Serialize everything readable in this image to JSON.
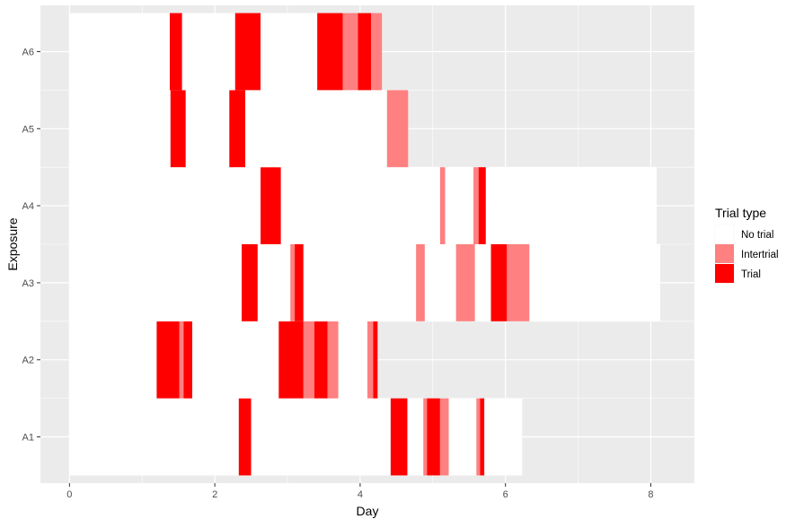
{
  "chart_data": {
    "type": "bar",
    "orientation": "horizontal",
    "xlabel": "Day",
    "ylabel": "Exposure",
    "xlim": [
      -0.4,
      8.6
    ],
    "x_ticks": [
      0,
      2,
      4,
      6,
      8
    ],
    "categories": [
      "A1",
      "A2",
      "A3",
      "A4",
      "A5",
      "A6"
    ],
    "grid": true,
    "legend": {
      "title": "Trial type",
      "position": "right",
      "entries": [
        {
          "name": "No trial",
          "color": "#ffffff"
        },
        {
          "name": "Intertrial",
          "color": "#ff8080"
        },
        {
          "name": "Trial",
          "color": "#ff0000"
        }
      ]
    },
    "series": [
      {
        "exposure": "A1",
        "segments": [
          {
            "start": 0,
            "end": 2.33,
            "type": "No trial"
          },
          {
            "start": 2.33,
            "end": 2.5,
            "type": "Trial"
          },
          {
            "start": 2.5,
            "end": 4.42,
            "type": "No trial"
          },
          {
            "start": 4.42,
            "end": 4.65,
            "type": "Trial"
          },
          {
            "start": 4.65,
            "end": 4.87,
            "type": "No trial"
          },
          {
            "start": 4.87,
            "end": 4.92,
            "type": "Intertrial"
          },
          {
            "start": 4.92,
            "end": 5.1,
            "type": "Trial"
          },
          {
            "start": 5.1,
            "end": 5.22,
            "type": "Intertrial"
          },
          {
            "start": 5.22,
            "end": 5.6,
            "type": "No trial"
          },
          {
            "start": 5.6,
            "end": 5.65,
            "type": "Intertrial"
          },
          {
            "start": 5.65,
            "end": 5.71,
            "type": "Trial"
          },
          {
            "start": 5.71,
            "end": 6.23,
            "type": "No trial"
          }
        ]
      },
      {
        "exposure": "A2",
        "segments": [
          {
            "start": 0,
            "end": 1.2,
            "type": "No trial"
          },
          {
            "start": 1.2,
            "end": 1.51,
            "type": "Trial"
          },
          {
            "start": 1.51,
            "end": 1.57,
            "type": "Intertrial"
          },
          {
            "start": 1.57,
            "end": 1.69,
            "type": "Trial"
          },
          {
            "start": 1.69,
            "end": 2.88,
            "type": "No trial"
          },
          {
            "start": 2.88,
            "end": 3.22,
            "type": "Trial"
          },
          {
            "start": 3.22,
            "end": 3.37,
            "type": "Intertrial"
          },
          {
            "start": 3.37,
            "end": 3.55,
            "type": "Trial"
          },
          {
            "start": 3.55,
            "end": 3.7,
            "type": "Intertrial"
          },
          {
            "start": 3.7,
            "end": 4.1,
            "type": "No trial"
          },
          {
            "start": 4.1,
            "end": 4.18,
            "type": "Intertrial"
          },
          {
            "start": 4.18,
            "end": 4.24,
            "type": "Trial"
          }
        ]
      },
      {
        "exposure": "A3",
        "segments": [
          {
            "start": 0,
            "end": 2.37,
            "type": "No trial"
          },
          {
            "start": 2.37,
            "end": 2.59,
            "type": "Trial"
          },
          {
            "start": 2.59,
            "end": 3.04,
            "type": "No trial"
          },
          {
            "start": 3.04,
            "end": 3.1,
            "type": "Intertrial"
          },
          {
            "start": 3.1,
            "end": 3.22,
            "type": "Trial"
          },
          {
            "start": 3.22,
            "end": 4.77,
            "type": "No trial"
          },
          {
            "start": 4.77,
            "end": 4.89,
            "type": "Intertrial"
          },
          {
            "start": 4.89,
            "end": 5.32,
            "type": "No trial"
          },
          {
            "start": 5.32,
            "end": 5.58,
            "type": "Intertrial"
          },
          {
            "start": 5.58,
            "end": 5.8,
            "type": "No trial"
          },
          {
            "start": 5.8,
            "end": 6.02,
            "type": "Trial"
          },
          {
            "start": 6.02,
            "end": 6.33,
            "type": "Intertrial"
          },
          {
            "start": 6.33,
            "end": 8.13,
            "type": "No trial"
          }
        ]
      },
      {
        "exposure": "A4",
        "segments": [
          {
            "start": 0,
            "end": 2.63,
            "type": "No trial"
          },
          {
            "start": 2.63,
            "end": 2.91,
            "type": "Trial"
          },
          {
            "start": 2.91,
            "end": 5.1,
            "type": "No trial"
          },
          {
            "start": 5.1,
            "end": 5.17,
            "type": "Intertrial"
          },
          {
            "start": 5.17,
            "end": 5.56,
            "type": "No trial"
          },
          {
            "start": 5.56,
            "end": 5.63,
            "type": "Intertrial"
          },
          {
            "start": 5.63,
            "end": 5.73,
            "type": "Trial"
          },
          {
            "start": 5.73,
            "end": 8.08,
            "type": "No trial"
          }
        ]
      },
      {
        "exposure": "A5",
        "segments": [
          {
            "start": 0,
            "end": 1.39,
            "type": "No trial"
          },
          {
            "start": 1.39,
            "end": 1.6,
            "type": "Trial"
          },
          {
            "start": 1.6,
            "end": 2.2,
            "type": "No trial"
          },
          {
            "start": 2.2,
            "end": 2.42,
            "type": "Trial"
          },
          {
            "start": 2.42,
            "end": 4.37,
            "type": "No trial"
          },
          {
            "start": 4.37,
            "end": 4.66,
            "type": "Intertrial"
          }
        ]
      },
      {
        "exposure": "A6",
        "segments": [
          {
            "start": 0,
            "end": 1.38,
            "type": "No trial"
          },
          {
            "start": 1.38,
            "end": 1.55,
            "type": "Trial"
          },
          {
            "start": 1.55,
            "end": 2.28,
            "type": "No trial"
          },
          {
            "start": 2.28,
            "end": 2.63,
            "type": "Trial"
          },
          {
            "start": 2.63,
            "end": 3.41,
            "type": "No trial"
          },
          {
            "start": 3.41,
            "end": 3.76,
            "type": "Trial"
          },
          {
            "start": 3.76,
            "end": 3.97,
            "type": "Intertrial"
          },
          {
            "start": 3.97,
            "end": 4.15,
            "type": "Trial"
          },
          {
            "start": 4.15,
            "end": 4.3,
            "type": "Intertrial"
          }
        ]
      }
    ]
  }
}
